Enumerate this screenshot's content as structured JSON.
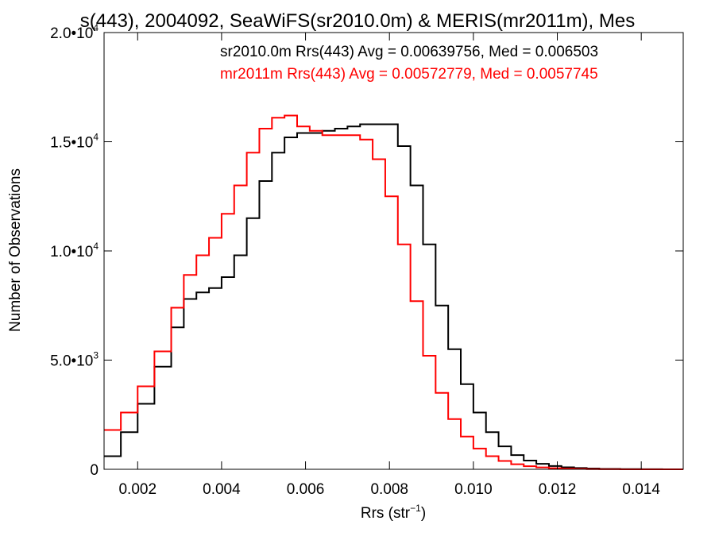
{
  "chart_data": {
    "type": "line",
    "title": "s(443), 2004092, SeaWiFS(sr2010.0m) & MERIS(mr2011m), Mes",
    "xlabel": "Rrs (str",
    "xlabel_sup": "−1",
    "xlabel_close": ")",
    "ylabel": "Number of Observations",
    "xlim": [
      0.0012,
      0.015
    ],
    "ylim": [
      0,
      20000
    ],
    "grid": false,
    "legend_position": "top-right",
    "x_ticks": [
      {
        "value": 0.002,
        "label": "0.002"
      },
      {
        "value": 0.004,
        "label": "0.004"
      },
      {
        "value": 0.006,
        "label": "0.006"
      },
      {
        "value": 0.008,
        "label": "0.008"
      },
      {
        "value": 0.01,
        "label": "0.010"
      },
      {
        "value": 0.012,
        "label": "0.012"
      },
      {
        "value": 0.014,
        "label": "0.014"
      }
    ],
    "y_ticks": [
      {
        "value": 0,
        "mantissa": "0",
        "exponent": ""
      },
      {
        "value": 5000,
        "mantissa": "5.0•10",
        "exponent": "3"
      },
      {
        "value": 10000,
        "mantissa": "1.0•10",
        "exponent": "4"
      },
      {
        "value": 15000,
        "mantissa": "1.5•10",
        "exponent": "4"
      },
      {
        "value": 20000,
        "mantissa": "2.0•10",
        "exponent": "4"
      }
    ],
    "legend": [
      {
        "text": "sr2010.0m Rrs(443) Avg = 0.00639756, Med = 0.006503",
        "color": "#000000"
      },
      {
        "text": "mr2011m Rrs(443) Avg = 0.00572779, Med = 0.0057745",
        "color": "#ff0000"
      }
    ],
    "series": [
      {
        "color": "#000000",
        "x": [
          0.0012,
          0.0016,
          0.002,
          0.0024,
          0.0028,
          0.0031,
          0.0034,
          0.0037,
          0.004,
          0.0043,
          0.0046,
          0.0049,
          0.0052,
          0.0055,
          0.0058,
          0.0061,
          0.0064,
          0.0067,
          0.007,
          0.0073,
          0.0076,
          0.0079,
          0.0082,
          0.0085,
          0.0088,
          0.0091,
          0.0094,
          0.0097,
          0.01,
          0.0103,
          0.0106,
          0.0109,
          0.0112,
          0.0115,
          0.0118,
          0.0121,
          0.0124,
          0.0127,
          0.013,
          0.0135,
          0.014,
          0.0145,
          0.015
        ],
        "y": [
          600,
          1700,
          3000,
          4700,
          6500,
          7800,
          8100,
          8300,
          8800,
          9800,
          11500,
          13200,
          14500,
          15200,
          15400,
          15400,
          15500,
          15600,
          15700,
          15800,
          15800,
          15800,
          14800,
          13000,
          10300,
          7500,
          5500,
          3900,
          2600,
          1700,
          1050,
          650,
          400,
          250,
          150,
          90,
          60,
          35,
          20,
          10,
          5,
          0,
          0
        ]
      },
      {
        "color": "#ff0000",
        "x": [
          0.0012,
          0.0016,
          0.002,
          0.0024,
          0.0028,
          0.0031,
          0.0034,
          0.0037,
          0.004,
          0.0043,
          0.0046,
          0.0049,
          0.0052,
          0.0055,
          0.0058,
          0.0061,
          0.0064,
          0.0067,
          0.007,
          0.0073,
          0.0076,
          0.0079,
          0.0082,
          0.0085,
          0.0088,
          0.0091,
          0.0094,
          0.0097,
          0.01,
          0.0103,
          0.0106,
          0.0109,
          0.0112,
          0.0115,
          0.0118,
          0.0121,
          0.0124,
          0.0127,
          0.013,
          0.0135,
          0.014,
          0.0145,
          0.015
        ],
        "y": [
          1800,
          2600,
          3800,
          5400,
          7400,
          8900,
          9800,
          10600,
          11700,
          13000,
          14500,
          15600,
          16100,
          16200,
          15700,
          15500,
          15300,
          15300,
          15300,
          15100,
          14200,
          12500,
          10300,
          7700,
          5200,
          3500,
          2300,
          1500,
          950,
          600,
          380,
          230,
          140,
          85,
          50,
          30,
          18,
          10,
          5,
          2,
          0,
          0,
          0
        ]
      }
    ]
  }
}
